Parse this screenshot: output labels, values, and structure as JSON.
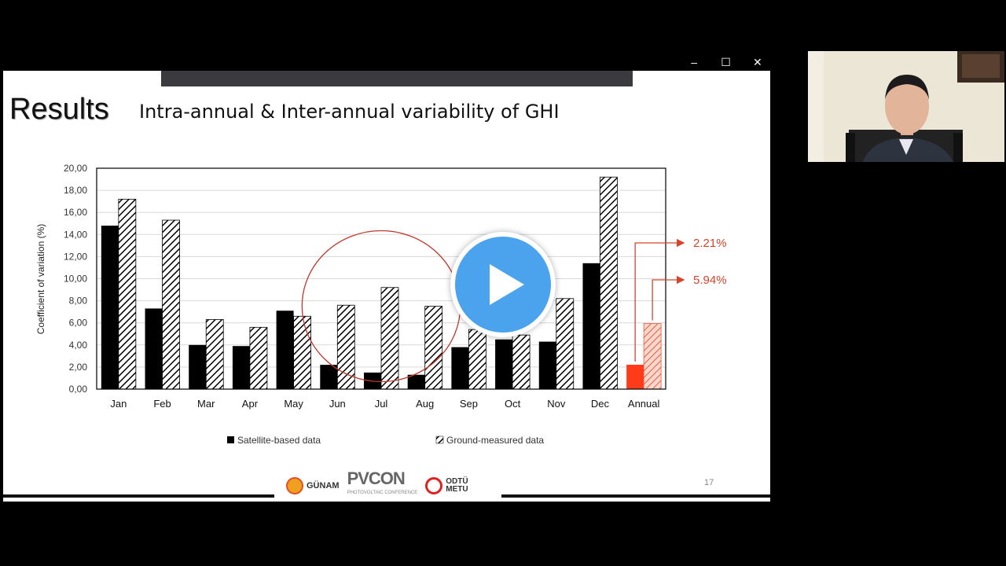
{
  "window": {
    "controls": [
      "–",
      "☐",
      "✕"
    ]
  },
  "slide": {
    "heading": "Results",
    "subtitle": "Intra-annual & Inter-annual variability of GHI",
    "page_number": "17",
    "logos": {
      "gunam": "GÜNAM",
      "pvcon": "PVCON",
      "pvcon_sub": "PHOTOVOLTAIC CONFERENCE",
      "metu_line1": "ODTÜ",
      "metu_line2": "METU"
    }
  },
  "chart_data": {
    "type": "bar",
    "ylabel": "Coefficient of variation (%)",
    "xlabel": "",
    "ylim": [
      0,
      20
    ],
    "yticks": [
      "0,00",
      "2,00",
      "4,00",
      "6,00",
      "8,00",
      "10,00",
      "12,00",
      "14,00",
      "16,00",
      "18,00",
      "20,00"
    ],
    "grid": true,
    "legend_position": "bottom",
    "categories": [
      "Jan",
      "Feb",
      "Mar",
      "Apr",
      "May",
      "Jun",
      "Jul",
      "Aug",
      "Sep",
      "Oct",
      "Nov",
      "Dec",
      "Annual"
    ],
    "series": [
      {
        "name": "Satellite-based data",
        "color": "#000000",
        "values": [
          14.8,
          7.3,
          4.0,
          3.9,
          7.1,
          2.2,
          1.5,
          1.3,
          3.8,
          4.5,
          4.3,
          11.4,
          2.21
        ]
      },
      {
        "name": "Ground-measured data",
        "color": "#000000",
        "values": [
          17.2,
          15.3,
          6.3,
          5.6,
          6.6,
          7.6,
          9.2,
          7.5,
          5.4,
          4.9,
          8.2,
          19.2,
          5.94
        ]
      }
    ],
    "annual_colors": {
      "satellite": "#ff3b1a",
      "ground": "#e06040"
    },
    "annotations": [
      {
        "text": "2.21%",
        "color": "#d9432a"
      },
      {
        "text": "5.94%",
        "color": "#d9432a"
      }
    ],
    "highlight": "circle around Jun–Aug"
  }
}
